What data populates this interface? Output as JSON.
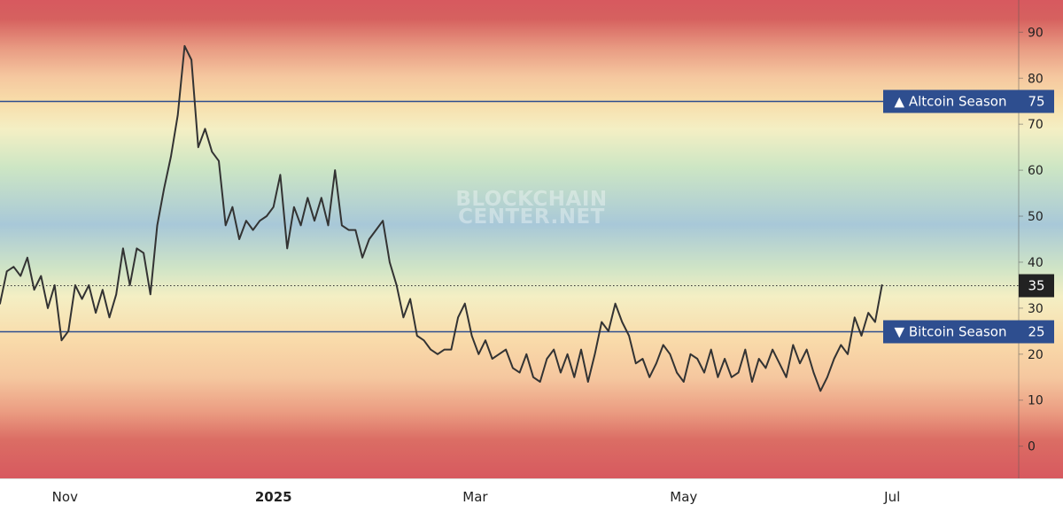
{
  "chart_data": {
    "type": "line",
    "title": "",
    "xlabel": "",
    "ylabel": "",
    "ylim": [
      -7,
      97
    ],
    "y_ticks": [
      0,
      10,
      20,
      30,
      40,
      50,
      60,
      70,
      80,
      90
    ],
    "x_axis": {
      "start": "2024-10-13",
      "end": "2025-08-07",
      "ticks": [
        {
          "date": "2024-11-01",
          "label": "Nov",
          "bold": false
        },
        {
          "date": "2025-01-01",
          "label": "2025",
          "bold": true
        },
        {
          "date": "2025-03-01",
          "label": "Mar",
          "bold": false
        },
        {
          "date": "2025-05-01",
          "label": "May",
          "bold": false
        },
        {
          "date": "2025-07-01",
          "label": "Jul",
          "bold": false
        }
      ]
    },
    "reference_lines": [
      {
        "value": 75,
        "label": "▲ Altcoin Season",
        "value_label": "75",
        "color": "#2e4e8f"
      },
      {
        "value": 25,
        "label": "▼ Bitcoin Season",
        "value_label": "25",
        "color": "#2e4e8f"
      }
    ],
    "current_value": {
      "value": 35,
      "label": "35"
    },
    "watermark": [
      "BLOCKCHAIN",
      "CENTER.NET"
    ],
    "line_color": "#333333",
    "series": [
      {
        "points": [
          [
            "2024-10-13",
            31
          ],
          [
            "2024-10-15",
            38
          ],
          [
            "2024-10-17",
            39
          ],
          [
            "2024-10-19",
            37
          ],
          [
            "2024-10-21",
            41
          ],
          [
            "2024-10-23",
            34
          ],
          [
            "2024-10-25",
            37
          ],
          [
            "2024-10-27",
            30
          ],
          [
            "2024-10-29",
            35
          ],
          [
            "2024-10-31",
            23
          ],
          [
            "2024-11-02",
            25
          ],
          [
            "2024-11-04",
            35
          ],
          [
            "2024-11-06",
            32
          ],
          [
            "2024-11-08",
            35
          ],
          [
            "2024-11-10",
            29
          ],
          [
            "2024-11-12",
            34
          ],
          [
            "2024-11-14",
            28
          ],
          [
            "2024-11-16",
            33
          ],
          [
            "2024-11-18",
            43
          ],
          [
            "2024-11-20",
            35
          ],
          [
            "2024-11-22",
            43
          ],
          [
            "2024-11-24",
            42
          ],
          [
            "2024-11-26",
            33
          ],
          [
            "2024-11-28",
            48
          ],
          [
            "2024-11-30",
            56
          ],
          [
            "2024-12-02",
            63
          ],
          [
            "2024-12-04",
            72
          ],
          [
            "2024-12-06",
            87
          ],
          [
            "2024-12-08",
            84
          ],
          [
            "2024-12-10",
            65
          ],
          [
            "2024-12-12",
            69
          ],
          [
            "2024-12-14",
            64
          ],
          [
            "2024-12-16",
            62
          ],
          [
            "2024-12-18",
            48
          ],
          [
            "2024-12-20",
            52
          ],
          [
            "2024-12-22",
            45
          ],
          [
            "2024-12-24",
            49
          ],
          [
            "2024-12-26",
            47
          ],
          [
            "2024-12-28",
            49
          ],
          [
            "2024-12-30",
            50
          ],
          [
            "2025-01-01",
            52
          ],
          [
            "2025-01-03",
            59
          ],
          [
            "2025-01-05",
            43
          ],
          [
            "2025-01-07",
            52
          ],
          [
            "2025-01-09",
            48
          ],
          [
            "2025-01-11",
            54
          ],
          [
            "2025-01-13",
            49
          ],
          [
            "2025-01-15",
            54
          ],
          [
            "2025-01-17",
            48
          ],
          [
            "2025-01-19",
            60
          ],
          [
            "2025-01-21",
            48
          ],
          [
            "2025-01-23",
            47
          ],
          [
            "2025-01-25",
            47
          ],
          [
            "2025-01-27",
            41
          ],
          [
            "2025-01-29",
            45
          ],
          [
            "2025-01-31",
            47
          ],
          [
            "2025-02-02",
            49
          ],
          [
            "2025-02-04",
            40
          ],
          [
            "2025-02-06",
            35
          ],
          [
            "2025-02-08",
            28
          ],
          [
            "2025-02-10",
            32
          ],
          [
            "2025-02-12",
            24
          ],
          [
            "2025-02-14",
            23
          ],
          [
            "2025-02-16",
            21
          ],
          [
            "2025-02-18",
            20
          ],
          [
            "2025-02-20",
            21
          ],
          [
            "2025-02-22",
            21
          ],
          [
            "2025-02-24",
            28
          ],
          [
            "2025-02-26",
            31
          ],
          [
            "2025-02-28",
            24
          ],
          [
            "2025-03-02",
            20
          ],
          [
            "2025-03-04",
            23
          ],
          [
            "2025-03-06",
            19
          ],
          [
            "2025-03-08",
            20
          ],
          [
            "2025-03-10",
            21
          ],
          [
            "2025-03-12",
            17
          ],
          [
            "2025-03-14",
            16
          ],
          [
            "2025-03-16",
            20
          ],
          [
            "2025-03-18",
            15
          ],
          [
            "2025-03-20",
            14
          ],
          [
            "2025-03-22",
            19
          ],
          [
            "2025-03-24",
            21
          ],
          [
            "2025-03-26",
            16
          ],
          [
            "2025-03-28",
            20
          ],
          [
            "2025-03-30",
            15
          ],
          [
            "2025-04-01",
            21
          ],
          [
            "2025-04-03",
            14
          ],
          [
            "2025-04-05",
            20
          ],
          [
            "2025-04-07",
            27
          ],
          [
            "2025-04-09",
            25
          ],
          [
            "2025-04-11",
            31
          ],
          [
            "2025-04-13",
            27
          ],
          [
            "2025-04-15",
            24
          ],
          [
            "2025-04-17",
            18
          ],
          [
            "2025-04-19",
            19
          ],
          [
            "2025-04-21",
            15
          ],
          [
            "2025-04-23",
            18
          ],
          [
            "2025-04-25",
            22
          ],
          [
            "2025-04-27",
            20
          ],
          [
            "2025-04-29",
            16
          ],
          [
            "2025-05-01",
            14
          ],
          [
            "2025-05-03",
            20
          ],
          [
            "2025-05-05",
            19
          ],
          [
            "2025-05-07",
            16
          ],
          [
            "2025-05-09",
            21
          ],
          [
            "2025-05-11",
            15
          ],
          [
            "2025-05-13",
            19
          ],
          [
            "2025-05-15",
            15
          ],
          [
            "2025-05-17",
            16
          ],
          [
            "2025-05-19",
            21
          ],
          [
            "2025-05-21",
            14
          ],
          [
            "2025-05-23",
            19
          ],
          [
            "2025-05-25",
            17
          ],
          [
            "2025-05-27",
            21
          ],
          [
            "2025-05-29",
            18
          ],
          [
            "2025-05-31",
            15
          ],
          [
            "2025-06-02",
            22
          ],
          [
            "2025-06-04",
            18
          ],
          [
            "2025-06-06",
            21
          ],
          [
            "2025-06-08",
            16
          ],
          [
            "2025-06-10",
            12
          ],
          [
            "2025-06-12",
            15
          ],
          [
            "2025-06-14",
            19
          ],
          [
            "2025-06-16",
            22
          ],
          [
            "2025-06-18",
            20
          ],
          [
            "2025-06-20",
            28
          ],
          [
            "2025-06-22",
            24
          ],
          [
            "2025-06-24",
            29
          ],
          [
            "2025-06-26",
            27
          ],
          [
            "2025-06-28",
            35
          ]
        ]
      }
    ]
  }
}
